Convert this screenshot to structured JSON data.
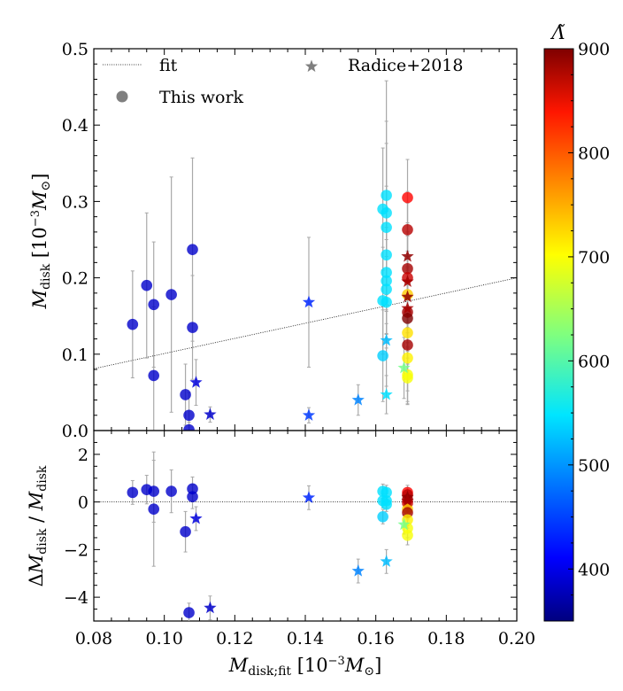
{
  "chart_data": {
    "type": "scatter",
    "top_panel": {
      "ylabel": "M_disk [10^-3 M_⊙]",
      "ylim": [
        0,
        0.5
      ],
      "yticks": [
        "0.0",
        "0.1",
        "0.2",
        "0.3",
        "0.4",
        "0.5"
      ],
      "fit_line": {
        "x": [
          0.08,
          0.2
        ],
        "y": [
          0.081,
          0.2
        ]
      },
      "this_work": [
        {
          "x": 0.091,
          "y": 0.139,
          "err": 0.07,
          "lambda": 390
        },
        {
          "x": 0.095,
          "y": 0.19,
          "err": 0.095,
          "lambda": 390
        },
        {
          "x": 0.097,
          "y": 0.165,
          "err": 0.082,
          "lambda": 390
        },
        {
          "x": 0.097,
          "y": 0.072,
          "err": 0.09,
          "lambda": 390
        },
        {
          "x": 0.102,
          "y": 0.178,
          "err": 0.154,
          "lambda": 390
        },
        {
          "x": 0.106,
          "y": 0.047,
          "err": 0.04,
          "lambda": 390
        },
        {
          "x": 0.107,
          "y": 0.02,
          "err": 0.03,
          "lambda": 390
        },
        {
          "x": 0.107,
          "y": 0.001,
          "err": 0.01,
          "lambda": 390
        },
        {
          "x": 0.108,
          "y": 0.237,
          "err": 0.12,
          "lambda": 390
        },
        {
          "x": 0.108,
          "y": 0.135,
          "err": 0.068,
          "lambda": 390
        },
        {
          "x": 0.162,
          "y": 0.29,
          "err": 0.08,
          "lambda": 540
        },
        {
          "x": 0.162,
          "y": 0.17,
          "err": 0.07,
          "lambda": 540
        },
        {
          "x": 0.162,
          "y": 0.098,
          "err": 0.06,
          "lambda": 530
        },
        {
          "x": 0.163,
          "y": 0.308,
          "err": 0.15,
          "lambda": 540
        },
        {
          "x": 0.163,
          "y": 0.285,
          "err": 0.12,
          "lambda": 540
        },
        {
          "x": 0.163,
          "y": 0.266,
          "err": 0.11,
          "lambda": 540
        },
        {
          "x": 0.163,
          "y": 0.23,
          "err": 0.09,
          "lambda": 540
        },
        {
          "x": 0.163,
          "y": 0.207,
          "err": 0.08,
          "lambda": 540
        },
        {
          "x": 0.163,
          "y": 0.196,
          "err": 0.07,
          "lambda": 540
        },
        {
          "x": 0.163,
          "y": 0.185,
          "err": 0.065,
          "lambda": 540
        },
        {
          "x": 0.163,
          "y": 0.168,
          "err": 0.06,
          "lambda": 540
        },
        {
          "x": 0.169,
          "y": 0.305,
          "err": 0.05,
          "lambda": 830
        },
        {
          "x": 0.169,
          "y": 0.263,
          "err": 0.05,
          "lambda": 870
        },
        {
          "x": 0.169,
          "y": 0.212,
          "err": 0.06,
          "lambda": 880
        },
        {
          "x": 0.169,
          "y": 0.2,
          "err": 0.06,
          "lambda": 860
        },
        {
          "x": 0.169,
          "y": 0.178,
          "err": 0.05,
          "lambda": 720
        },
        {
          "x": 0.169,
          "y": 0.155,
          "err": 0.06,
          "lambda": 880
        },
        {
          "x": 0.169,
          "y": 0.147,
          "err": 0.06,
          "lambda": 900
        },
        {
          "x": 0.169,
          "y": 0.128,
          "err": 0.05,
          "lambda": 710
        },
        {
          "x": 0.169,
          "y": 0.112,
          "err": 0.06,
          "lambda": 880
        },
        {
          "x": 0.169,
          "y": 0.095,
          "err": 0.06,
          "lambda": 700
        },
        {
          "x": 0.169,
          "y": 0.073,
          "err": 0.035,
          "lambda": 690
        },
        {
          "x": 0.169,
          "y": 0.069,
          "err": 0.035,
          "lambda": 690
        }
      ],
      "radice2018": [
        {
          "x": 0.109,
          "y": 0.063,
          "err": 0.03,
          "lambda": 400
        },
        {
          "x": 0.113,
          "y": 0.021,
          "err": 0.01,
          "lambda": 390
        },
        {
          "x": 0.141,
          "y": 0.168,
          "err": 0.085,
          "lambda": 440
        },
        {
          "x": 0.141,
          "y": 0.02,
          "err": 0.01,
          "lambda": 450
        },
        {
          "x": 0.155,
          "y": 0.04,
          "err": 0.02,
          "lambda": 490
        },
        {
          "x": 0.163,
          "y": 0.118,
          "err": 0.06,
          "lambda": 520
        },
        {
          "x": 0.163,
          "y": 0.047,
          "err": 0.025,
          "lambda": 540
        },
        {
          "x": 0.168,
          "y": 0.082,
          "err": 0.04,
          "lambda": 620
        },
        {
          "x": 0.169,
          "y": 0.228,
          "err": 0.07,
          "lambda": 890
        },
        {
          "x": 0.169,
          "y": 0.195,
          "err": 0.06,
          "lambda": 880
        },
        {
          "x": 0.169,
          "y": 0.175,
          "err": 0.06,
          "lambda": 890
        },
        {
          "x": 0.169,
          "y": 0.16,
          "err": 0.05,
          "lambda": 880
        }
      ]
    },
    "bottom_panel": {
      "ylabel": "ΔM_disk / M_disk",
      "ylim": [
        -5,
        3
      ],
      "yticks": [
        "−4",
        "−2",
        "0",
        "2"
      ],
      "this_work": [
        {
          "x": 0.091,
          "y": 0.4,
          "err": 0.5,
          "lambda": 390
        },
        {
          "x": 0.095,
          "y": 0.52,
          "err": 0.6,
          "lambda": 390
        },
        {
          "x": 0.097,
          "y": 0.45,
          "err": 1.3,
          "lambda": 390
        },
        {
          "x": 0.097,
          "y": -0.3,
          "err": 2.4,
          "lambda": 390
        },
        {
          "x": 0.102,
          "y": 0.45,
          "err": 0.9,
          "lambda": 390
        },
        {
          "x": 0.106,
          "y": -1.25,
          "err": 0.85,
          "lambda": 390
        },
        {
          "x": 0.107,
          "y": -4.65,
          "err": 0.4,
          "lambda": 390
        },
        {
          "x": 0.108,
          "y": 0.55,
          "err": 0.5,
          "lambda": 390
        },
        {
          "x": 0.108,
          "y": 0.22,
          "err": 0.5,
          "lambda": 390
        },
        {
          "x": 0.162,
          "y": 0.45,
          "err": 0.3,
          "lambda": 540
        },
        {
          "x": 0.162,
          "y": 0.05,
          "err": 0.3,
          "lambda": 540
        },
        {
          "x": 0.162,
          "y": -0.62,
          "err": 0.3,
          "lambda": 530
        },
        {
          "x": 0.163,
          "y": 0.4,
          "err": 0.3,
          "lambda": 540
        },
        {
          "x": 0.163,
          "y": 0.05,
          "err": 0.3,
          "lambda": 540
        },
        {
          "x": 0.163,
          "y": -0.1,
          "err": 0.3,
          "lambda": 540
        },
        {
          "x": 0.169,
          "y": 0.4,
          "err": 0.3,
          "lambda": 830
        },
        {
          "x": 0.169,
          "y": 0.3,
          "err": 0.3,
          "lambda": 870
        },
        {
          "x": 0.169,
          "y": 0.1,
          "err": 0.3,
          "lambda": 880
        },
        {
          "x": 0.169,
          "y": -0.05,
          "err": 0.3,
          "lambda": 860
        },
        {
          "x": 0.169,
          "y": -0.3,
          "err": 0.3,
          "lambda": 720
        },
        {
          "x": 0.169,
          "y": -0.45,
          "err": 0.3,
          "lambda": 880
        },
        {
          "x": 0.169,
          "y": -0.75,
          "err": 0.35,
          "lambda": 700
        },
        {
          "x": 0.169,
          "y": -1.1,
          "err": 0.4,
          "lambda": 690
        },
        {
          "x": 0.169,
          "y": -1.4,
          "err": 0.4,
          "lambda": 690
        }
      ],
      "radice2018": [
        {
          "x": 0.109,
          "y": -0.7,
          "err": 0.5,
          "lambda": 400
        },
        {
          "x": 0.113,
          "y": -4.45,
          "err": 0.5,
          "lambda": 390
        },
        {
          "x": 0.141,
          "y": 0.18,
          "err": 0.5,
          "lambda": 440
        },
        {
          "x": 0.155,
          "y": -2.9,
          "err": 0.5,
          "lambda": 490
        },
        {
          "x": 0.163,
          "y": -2.5,
          "err": 0.5,
          "lambda": 520
        },
        {
          "x": 0.168,
          "y": -0.95,
          "err": 0.4,
          "lambda": 620
        },
        {
          "x": 0.169,
          "y": 0.2,
          "err": 0.3,
          "lambda": 890
        },
        {
          "x": 0.169,
          "y": 0.05,
          "err": 0.3,
          "lambda": 880
        }
      ]
    },
    "xlabel": "M_disk;fit [10^-3 M_⊙]",
    "xlim": [
      0.08,
      0.2
    ],
    "xticks": [
      "0.08",
      "0.10",
      "0.12",
      "0.14",
      "0.16",
      "0.18",
      "0.20"
    ],
    "colorbar": {
      "label": "Λ̃",
      "range": [
        350,
        900
      ],
      "ticks": [
        "400",
        "500",
        "600",
        "700",
        "800",
        "900"
      ],
      "colormap": "jet"
    },
    "legend": {
      "placement": "top",
      "fit_label": "fit",
      "radice_label": "Radice+2018",
      "this_work_label": "This work"
    },
    "colors": {
      "legend_marker": "#7f7f7f",
      "errorbar": "#a9a9a9",
      "fit_line": "#000000"
    }
  }
}
